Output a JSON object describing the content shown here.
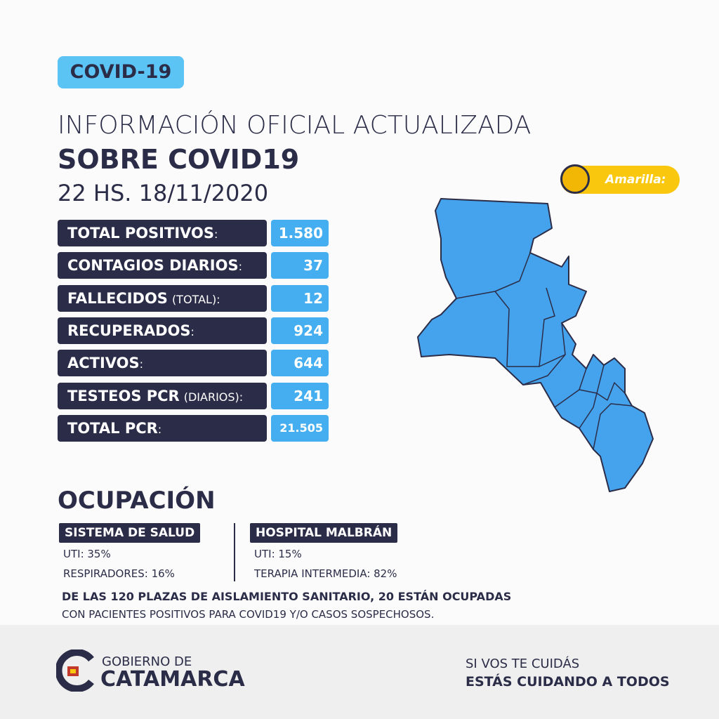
{
  "badge": "COVID-19",
  "header": {
    "title": "INFORMACIÓN OFICIAL ACTUALIZADA",
    "subtitle": "SOBRE COVID19",
    "date": "22 HS. 18/11/2020"
  },
  "status": "Amarilla:",
  "stats": [
    {
      "label": "TOTAL POSITIVOS",
      "suffix": ":",
      "value": "1.580"
    },
    {
      "label": "CONTAGIOS DIARIOS",
      "suffix": ":",
      "value": "37"
    },
    {
      "label": "FALLECIDOS",
      "suffix": "(TOTAL):",
      "value": "12"
    },
    {
      "label": "RECUPERADOS",
      "suffix": ":",
      "value": "924"
    },
    {
      "label": "ACTIVOS",
      "suffix": ":",
      "value": "644"
    },
    {
      "label": "TESTEOS PCR",
      "suffix": "(DIARIOS):",
      "value": "241"
    },
    {
      "label": "TOTAL PCR",
      "suffix": ":",
      "value": "21.505"
    }
  ],
  "occupancy": {
    "title": "OCUPACIÓN",
    "groups": [
      {
        "name": "SISTEMA DE SALUD",
        "items": [
          "UTI: 35%",
          "RESPIRADORES: 16%"
        ]
      },
      {
        "name": "HOSPITAL MALBRÁN",
        "items": [
          "UTI: 15%",
          "TERAPIA INTERMEDIA: 82%"
        ]
      }
    ],
    "isolation": "DE LAS 120 PLAZAS DE AISLAMIENTO SANITARIO, 20 ESTÁN OCUPADAS",
    "isolation_detail": "CON PACIENTES POSITIVOS PARA COVID19 Y/O CASOS SOSPECHOSOS."
  },
  "footer": {
    "org_top": "GOBIERNO DE",
    "org_name": "CATAMARCA",
    "slogan_top": "SI VOS TE CUIDÁS",
    "slogan": "ESTÁS CUIDANDO A TODOS"
  }
}
